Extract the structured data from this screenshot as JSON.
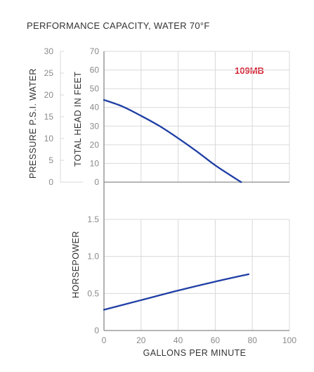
{
  "chart_data": [
    {
      "type": "line",
      "title": "PERFORMANCE CAPACITY, WATER 70°F",
      "model_label": "109MB",
      "xlabel": "GALLONS PER MINUTE",
      "ylabel": "TOTAL HEAD IN FEET",
      "ylabel_secondary": "PRESSURE P.S.I. WATER",
      "xlim": [
        0,
        100
      ],
      "ylim": [
        0,
        70
      ],
      "ylim_secondary": [
        0,
        30
      ],
      "x_ticks": [
        0,
        20,
        40,
        60,
        80,
        100
      ],
      "y_ticks": [
        0,
        10,
        20,
        30,
        40,
        50,
        60,
        70
      ],
      "y_ticks_secondary": [
        0,
        5,
        10,
        15,
        20,
        25,
        30
      ],
      "grid": true,
      "series": [
        {
          "x": [
            0,
            10,
            20,
            30,
            40,
            50,
            60,
            70,
            74
          ],
          "y": [
            44,
            40.5,
            35.5,
            30,
            23.5,
            16.5,
            9,
            2.5,
            0
          ]
        }
      ],
      "colors": {
        "curve": "#1f3fa5",
        "model_label": "#d62839"
      }
    },
    {
      "type": "line",
      "ylabel": "HORSEPOWER",
      "xlabel": "GALLONS PER MINUTE",
      "xlim": [
        0,
        100
      ],
      "ylim": [
        0,
        1.5
      ],
      "x_ticks": [
        0,
        20,
        40,
        60,
        80,
        100
      ],
      "x_tick_labels": [
        "0",
        "20",
        "40",
        "60",
        "80",
        "100"
      ],
      "y_ticks": [
        0,
        0.5,
        1.0,
        1.5
      ],
      "y_tick_labels": [
        "0",
        "0.5",
        "1.0",
        "1.5"
      ],
      "grid": true,
      "series": [
        {
          "x": [
            0,
            20,
            40,
            60,
            78
          ],
          "y": [
            0.28,
            0.41,
            0.54,
            0.66,
            0.76
          ]
        }
      ],
      "colors": {
        "curve": "#1f3fa5"
      }
    }
  ]
}
